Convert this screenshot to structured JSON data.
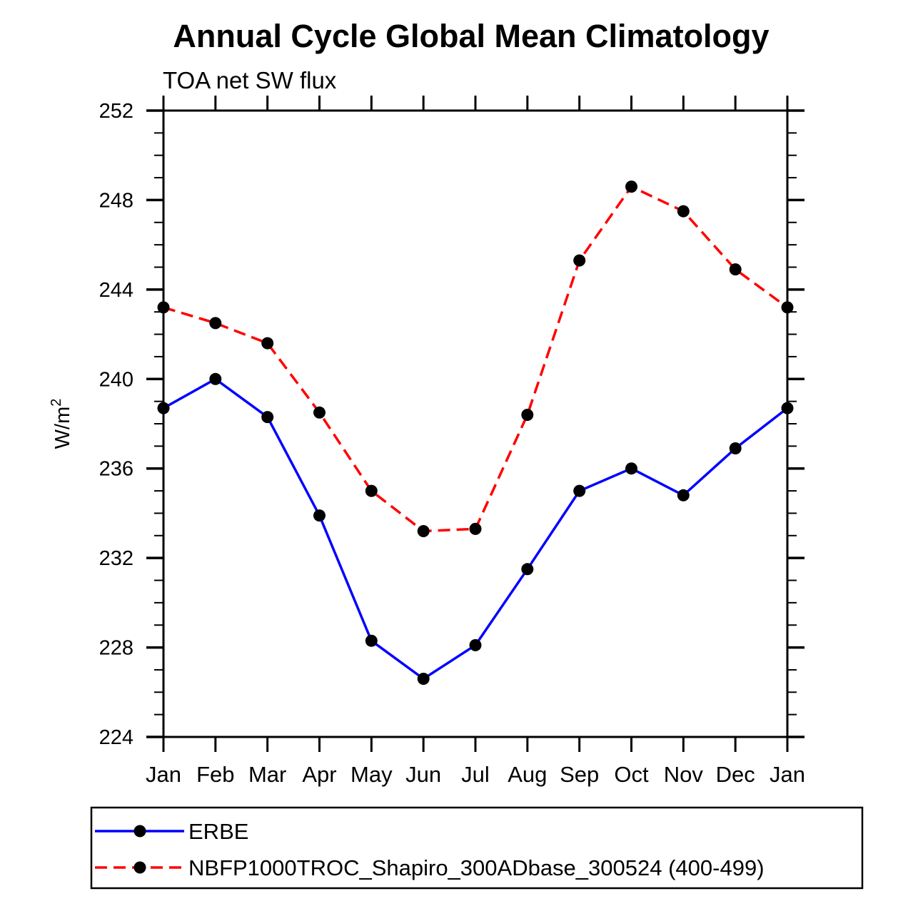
{
  "chart": {
    "title": "Annual Cycle Global Mean Climatology",
    "subtitle": "TOA net SW flux",
    "ylabel_base": "W/m",
    "ylabel_sup": "2"
  },
  "chart_data": {
    "type": "line",
    "title": "Annual Cycle Global Mean Climatology",
    "subtitle": "TOA net SW flux",
    "xlabel": "",
    "ylabel": "W/m^2",
    "x_categories": [
      "Jan",
      "Feb",
      "Mar",
      "Apr",
      "May",
      "Jun",
      "Jul",
      "Aug",
      "Sep",
      "Oct",
      "Nov",
      "Dec",
      "Jan"
    ],
    "ylim": [
      224,
      252
    ],
    "y_major_step": 4,
    "y_minor_step": 1,
    "y_major_ticks": [
      224,
      228,
      232,
      236,
      240,
      244,
      248,
      252
    ],
    "grid": false,
    "legend_position": "bottom-box",
    "axis_color": "#000000",
    "marker_color": "#000000",
    "series": [
      {
        "name": "ERBE",
        "color": "#0000ff",
        "line_style": "solid",
        "marker": "filled-circle",
        "values": [
          238.7,
          240.0,
          238.3,
          233.9,
          228.3,
          226.6,
          228.1,
          231.5,
          235.0,
          236.0,
          234.8,
          236.9,
          238.7
        ]
      },
      {
        "name": "NBFP1000TROC_Shapiro_300ADbase_300524 (400-499)",
        "color": "#ff0000",
        "line_style": "dashed",
        "marker": "filled-circle",
        "values": [
          243.2,
          242.5,
          241.6,
          238.5,
          235.0,
          233.2,
          233.3,
          238.4,
          245.3,
          248.6,
          247.5,
          244.9,
          243.2
        ]
      }
    ]
  }
}
